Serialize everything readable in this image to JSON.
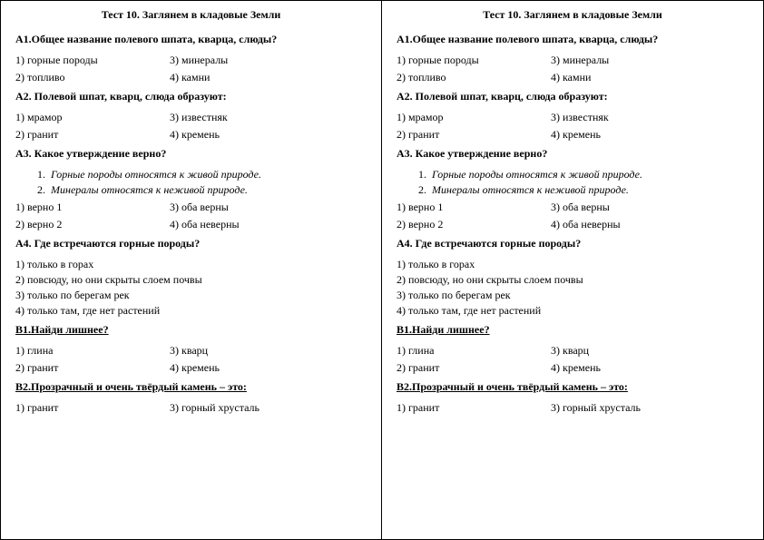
{
  "title": "Тест 10. Заглянем в кладовые Земли",
  "q_a1": "А1.Общее название полевого шпата, кварца, слюды?",
  "a1_1": "1) горные породы",
  "a1_2": "2) топливо",
  "a1_3": "3) минералы",
  "a1_4": "4) камни",
  "q_a2": "А2. Полевой шпат, кварц, слюда образуют:",
  "a2_1": "1) мрамор",
  "a2_2": "2) гранит",
  "a2_3": "3) известняк",
  "a2_4": "4) кремень",
  "q_a3": "А3. Какое утверждение верно?",
  "a3_s1n": "1.",
  "a3_s1": "Горные породы относятся к живой природе.",
  "a3_s2n": "2.",
  "a3_s2": "Минералы относятся к неживой природе.",
  "a3_1": "1) верно 1",
  "a3_2": "2) верно 2",
  "a3_3": "3) оба верны",
  "a3_4": "4) оба неверны",
  "q_a4": "А4. Где встречаются горные породы?",
  "a4_1": "1) только в горах",
  "a4_2": "2) повсюду, но они скрыты слоем почвы",
  "a4_3": "3) только по берегам рек",
  "a4_4": "4) только там, где нет растений",
  "q_b1": "В1.Найди лишнее?",
  "b1_1": "1) глина",
  "b1_2": "2) гранит",
  "b1_3": "3) кварц",
  "b1_4": "4) кремень",
  "q_b2": "В2.Прозрачный и очень твёрдый камень – это:",
  "b2_1": "1) гранит",
  "b2_3": "3) горный хрусталь"
}
